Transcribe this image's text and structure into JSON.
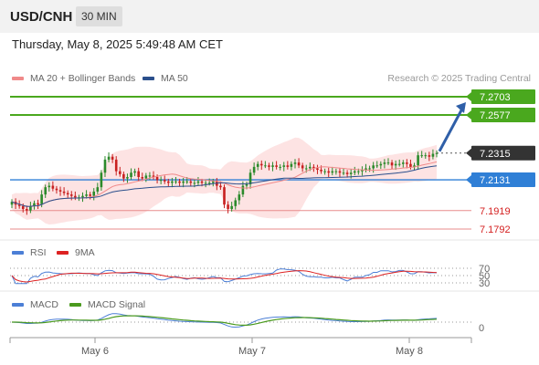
{
  "header": {
    "pair": "USD/CNH",
    "interval": "30 MIN"
  },
  "timestamp": "Thursday, May 8, 2025 5:49:48 AM CET",
  "credit": "Research © 2025 Trading Central",
  "legend_main": [
    {
      "label": "MA 20 + Bollinger Bands",
      "color": "#f08a8a"
    },
    {
      "label": "MA 50",
      "color": "#2b4f8c"
    }
  ],
  "legend_rsi": [
    {
      "label": "RSI",
      "color": "#4c7fd6"
    },
    {
      "label": "9MA",
      "color": "#dd2222"
    }
  ],
  "legend_macd": [
    {
      "label": "MACD",
      "color": "#4c7fd6"
    },
    {
      "label": "MACD Signal",
      "color": "#4a9a1e"
    }
  ],
  "chart_data": {
    "type": "candlestick",
    "ylim": [
      7.17,
      7.275
    ],
    "x_ticks": [
      "May 6",
      "May 7",
      "May 8"
    ],
    "levels": [
      {
        "label": "7.2703",
        "value": 7.2703,
        "kind": "resistance"
      },
      {
        "label": "7.2577",
        "value": 7.2577,
        "kind": "resistance"
      },
      {
        "label": "7.2315",
        "value": 7.2315,
        "kind": "last"
      },
      {
        "label": "7.2131",
        "value": 7.2131,
        "kind": "pivot"
      },
      {
        "label": "7.1919",
        "value": 7.1919,
        "kind": "support"
      },
      {
        "label": "7.1792",
        "value": 7.1792,
        "kind": "support"
      }
    ],
    "close_series": [
      7.198,
      7.196,
      7.195,
      7.193,
      7.192,
      7.195,
      7.197,
      7.196,
      7.203,
      7.208,
      7.209,
      7.207,
      7.206,
      7.205,
      7.204,
      7.203,
      7.202,
      7.201,
      7.201,
      7.202,
      7.203,
      7.202,
      7.205,
      7.208,
      7.218,
      7.227,
      7.229,
      7.227,
      7.219,
      7.217,
      7.214,
      7.215,
      7.218,
      7.219,
      7.215,
      7.214,
      7.216,
      7.216,
      7.215,
      7.213,
      7.213,
      7.212,
      7.211,
      7.212,
      7.212,
      7.211,
      7.212,
      7.212,
      7.211,
      7.211,
      7.212,
      7.211,
      7.211,
      7.211,
      7.212,
      7.209,
      7.208,
      7.196,
      7.193,
      7.195,
      7.199,
      7.203,
      7.209,
      7.21,
      7.218,
      7.222,
      7.224,
      7.223,
      7.223,
      7.222,
      7.223,
      7.222,
      7.222,
      7.223,
      7.222,
      7.224,
      7.225,
      7.223,
      7.221,
      7.221,
      7.222,
      7.221,
      7.22,
      7.219,
      7.219,
      7.218,
      7.219,
      7.219,
      7.218,
      7.218,
      7.217,
      7.218,
      7.219,
      7.219,
      7.22,
      7.221,
      7.221,
      7.223,
      7.223,
      7.224,
      7.225,
      7.225,
      7.223,
      7.224,
      7.224,
      7.225,
      7.224,
      7.222,
      7.223,
      7.23,
      7.23,
      7.23,
      7.229,
      7.231,
      7.2315
    ],
    "rsi": {
      "levels": [
        70,
        50,
        30
      ]
    },
    "macd": {
      "zero_label": "0"
    },
    "projection": {
      "from": 7.2315,
      "to": 7.2703
    }
  }
}
